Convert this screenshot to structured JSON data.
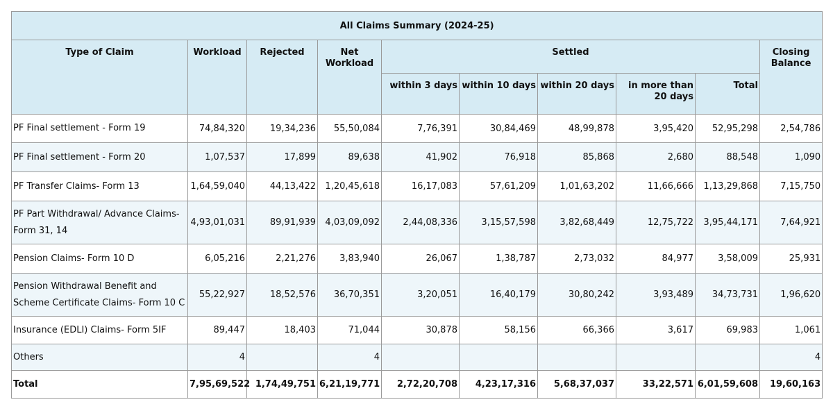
{
  "title": "All Claims Summary (2024-25)",
  "headers": {
    "type": "Type of Claim",
    "workload": "Workload",
    "rejected": "Rejected",
    "net_workload": "Net Workload",
    "settled": "Settled",
    "closing": "Closing Balance",
    "within3": "within 3 days",
    "within10": "within 10 days",
    "within20": "within 20 days",
    "more20": "in more than 20 days",
    "total": "Total"
  },
  "rows": [
    {
      "type": "PF Final settlement - Form 19",
      "workload": "74,84,320",
      "rejected": "19,34,236",
      "net": "55,50,084",
      "w3": "7,76,391",
      "w10": "30,84,469",
      "w20": "48,99,878",
      "m20": "3,95,420",
      "total": "52,95,298",
      "closing": "2,54,786"
    },
    {
      "type": "PF Final settlement - Form 20",
      "workload": "1,07,537",
      "rejected": "17,899",
      "net": "89,638",
      "w3": "41,902",
      "w10": "76,918",
      "w20": "85,868",
      "m20": "2,680",
      "total": "88,548",
      "closing": "1,090"
    },
    {
      "type": "PF Transfer Claims- Form 13",
      "workload": "1,64,59,040",
      "rejected": "44,13,422",
      "net": "1,20,45,618",
      "w3": "16,17,083",
      "w10": "57,61,209",
      "w20": "1,01,63,202",
      "m20": "11,66,666",
      "total": "1,13,29,868",
      "closing": "7,15,750"
    },
    {
      "type": "PF Part Withdrawal/ Advance Claims- Form 31, 14",
      "workload": "4,93,01,031",
      "rejected": "89,91,939",
      "net": "4,03,09,092",
      "w3": "2,44,08,336",
      "w10": "3,15,57,598",
      "w20": "3,82,68,449",
      "m20": "12,75,722",
      "total": "3,95,44,171",
      "closing": "7,64,921"
    },
    {
      "type": "Pension Claims- Form 10 D",
      "workload": "6,05,216",
      "rejected": "2,21,276",
      "net": "3,83,940",
      "w3": "26,067",
      "w10": "1,38,787",
      "w20": "2,73,032",
      "m20": "84,977",
      "total": "3,58,009",
      "closing": "25,931"
    },
    {
      "type": "Pension Withdrawal Benefit and Scheme Certificate Claims- Form 10 C",
      "workload": "55,22,927",
      "rejected": "18,52,576",
      "net": "36,70,351",
      "w3": "3,20,051",
      "w10": "16,40,179",
      "w20": "30,80,242",
      "m20": "3,93,489",
      "total": "34,73,731",
      "closing": "1,96,620"
    },
    {
      "type": "Insurance (EDLI) Claims- Form 5IF",
      "workload": "89,447",
      "rejected": "18,403",
      "net": "71,044",
      "w3": "30,878",
      "w10": "58,156",
      "w20": "66,366",
      "m20": "3,617",
      "total": "69,983",
      "closing": "1,061"
    },
    {
      "type": "Others",
      "workload": "4",
      "rejected": "",
      "net": "4",
      "w3": "",
      "w10": "",
      "w20": "",
      "m20": "",
      "total": "",
      "closing": "4"
    },
    {
      "type": "Total",
      "workload": "7,95,69,522",
      "rejected": "1,74,49,751",
      "net": "6,21,19,771",
      "w3": "2,72,20,708",
      "w10": "4,23,17,316",
      "w20": "5,68,37,037",
      "m20": "33,22,571",
      "total": "6,01,59,608",
      "closing": "19,60,163"
    }
  ]
}
